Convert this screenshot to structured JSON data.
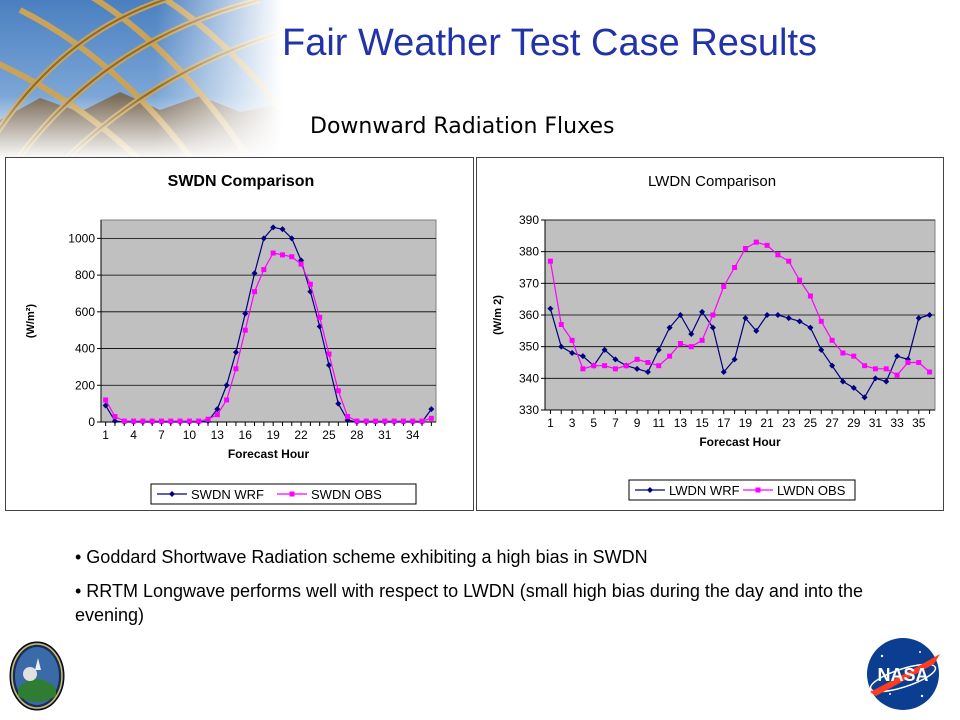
{
  "title": "Fair Weather Test Case Results",
  "subtitle": "Downward Radiation Fluxes",
  "bullets": [
    "• Goddard Shortwave Radiation scheme exhibiting a high bias in SWDN",
    "• RRTM Longwave performs well with respect to LWDN (small high bias during the day and into the evening)"
  ],
  "icons": [
    "architecture-photo-icon",
    "mission-patch-icon",
    "nasa-logo-icon"
  ],
  "colors": {
    "title": "#2233aa",
    "series_model": "#000080",
    "series_obs": "#ff00ff",
    "plot_bg": "#c0c0c0"
  },
  "chart_data": [
    {
      "type": "line",
      "title": "SWDN Comparison",
      "xlabel": "Forecast Hour",
      "ylabel": "(W/m²)",
      "x": [
        1,
        2,
        3,
        4,
        5,
        6,
        7,
        8,
        9,
        10,
        11,
        12,
        13,
        14,
        15,
        16,
        17,
        18,
        19,
        20,
        21,
        22,
        23,
        24,
        25,
        26,
        27,
        28,
        29,
        30,
        31,
        32,
        33,
        34,
        35,
        36
      ],
      "x_tick_labels": [
        "1",
        "4",
        "7",
        "10",
        "13",
        "16",
        "19",
        "22",
        "25",
        "28",
        "31",
        "34"
      ],
      "ylim": [
        0,
        1100
      ],
      "y_ticks": [
        0,
        200,
        400,
        600,
        800,
        1000
      ],
      "grid": true,
      "legend_position": "bottom",
      "series": [
        {
          "name": "SWDN WRF",
          "color": "#000080",
          "marker": "diamond",
          "values": [
            90,
            5,
            0,
            0,
            0,
            0,
            0,
            0,
            0,
            0,
            0,
            5,
            70,
            200,
            380,
            590,
            810,
            1000,
            1060,
            1050,
            1000,
            880,
            710,
            520,
            310,
            100,
            10,
            0,
            0,
            0,
            0,
            0,
            0,
            0,
            0,
            70
          ]
        },
        {
          "name": "SWDN OBS",
          "color": "#ff00ff",
          "marker": "square",
          "values": [
            120,
            30,
            5,
            5,
            5,
            5,
            5,
            5,
            5,
            5,
            5,
            15,
            40,
            120,
            290,
            500,
            710,
            830,
            920,
            910,
            900,
            860,
            750,
            570,
            370,
            170,
            30,
            5,
            5,
            5,
            5,
            5,
            5,
            5,
            5,
            20
          ]
        }
      ]
    },
    {
      "type": "line",
      "title": "LWDN Comparison",
      "xlabel": "Forecast Hour",
      "ylabel": "(W/m 2)",
      "x": [
        1,
        2,
        3,
        4,
        5,
        6,
        7,
        8,
        9,
        10,
        11,
        12,
        13,
        14,
        15,
        16,
        17,
        18,
        19,
        20,
        21,
        22,
        23,
        24,
        25,
        26,
        27,
        28,
        29,
        30,
        31,
        32,
        33,
        34,
        35,
        36
      ],
      "x_tick_labels": [
        "1",
        "3",
        "5",
        "7",
        "9",
        "11",
        "13",
        "15",
        "17",
        "19",
        "21",
        "23",
        "25",
        "27",
        "29",
        "31",
        "33",
        "35"
      ],
      "ylim": [
        330,
        390
      ],
      "y_ticks": [
        330,
        340,
        350,
        360,
        370,
        380,
        390
      ],
      "grid": true,
      "legend_position": "bottom",
      "series": [
        {
          "name": "LWDN WRF",
          "color": "#000080",
          "marker": "diamond",
          "values": [
            362,
            350,
            348,
            347,
            344,
            349,
            346,
            344,
            343,
            342,
            349,
            356,
            360,
            354,
            361,
            356,
            342,
            346,
            359,
            355,
            360,
            360,
            359,
            358,
            356,
            349,
            344,
            339,
            337,
            334,
            340,
            339,
            347,
            346,
            359,
            360
          ]
        },
        {
          "name": "LWDN OBS",
          "color": "#ff00ff",
          "marker": "square",
          "values": [
            377,
            357,
            352,
            343,
            344,
            344,
            343,
            344,
            346,
            345,
            344,
            347,
            351,
            350,
            352,
            360,
            369,
            375,
            381,
            383,
            382,
            379,
            377,
            371,
            366,
            358,
            352,
            348,
            347,
            344,
            343,
            343,
            341,
            345,
            345,
            342
          ]
        }
      ]
    }
  ]
}
